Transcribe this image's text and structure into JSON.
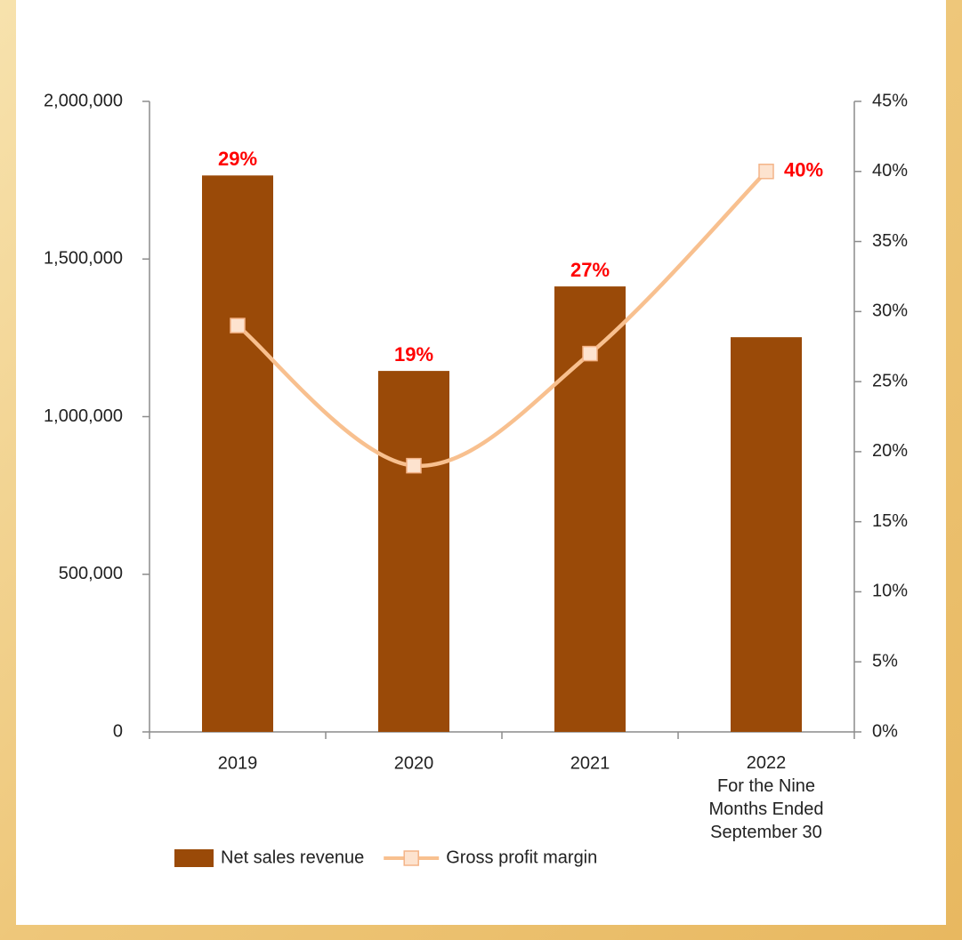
{
  "chart_data": {
    "type": "bar-line",
    "categories": [
      "2019",
      "2020",
      "2021",
      "2022\nFor the Nine\nMonths Ended\nSeptember 30"
    ],
    "series": [
      {
        "name": "Net sales revenue",
        "type": "bar",
        "color": "#9a4a08",
        "values": [
          1765000,
          1145000,
          1413000,
          1252000
        ]
      },
      {
        "name": "Gross profit margin",
        "type": "line",
        "axis": "y2",
        "color": "#f8c08f",
        "values": [
          29,
          19,
          27,
          40
        ],
        "value_labels": [
          "29%",
          "19%",
          "27%",
          "40%"
        ]
      }
    ],
    "ylim": [
      0,
      2000000
    ],
    "yticks": [
      0,
      {
        "value": 500000,
        "label": "500,000"
      },
      {
        "value": 1000000,
        "label": "1,000,000"
      },
      {
        "value": 1500000,
        "label": "1,500,000"
      },
      {
        "value": 2000000,
        "label": "2,000,000"
      }
    ],
    "y2lim": [
      0,
      45
    ],
    "y2ticks": [
      {
        "value": 0,
        "label": "0%"
      },
      {
        "value": 5,
        "label": "5%"
      },
      {
        "value": 10,
        "label": "10%"
      },
      {
        "value": 15,
        "label": "15%"
      },
      {
        "value": 20,
        "label": "20%"
      },
      {
        "value": 25,
        "label": "25%"
      },
      {
        "value": 30,
        "label": "30%"
      },
      {
        "value": 35,
        "label": "35%"
      },
      {
        "value": 40,
        "label": "40%"
      },
      {
        "value": 45,
        "label": "45%"
      }
    ],
    "legend": "bottom"
  }
}
